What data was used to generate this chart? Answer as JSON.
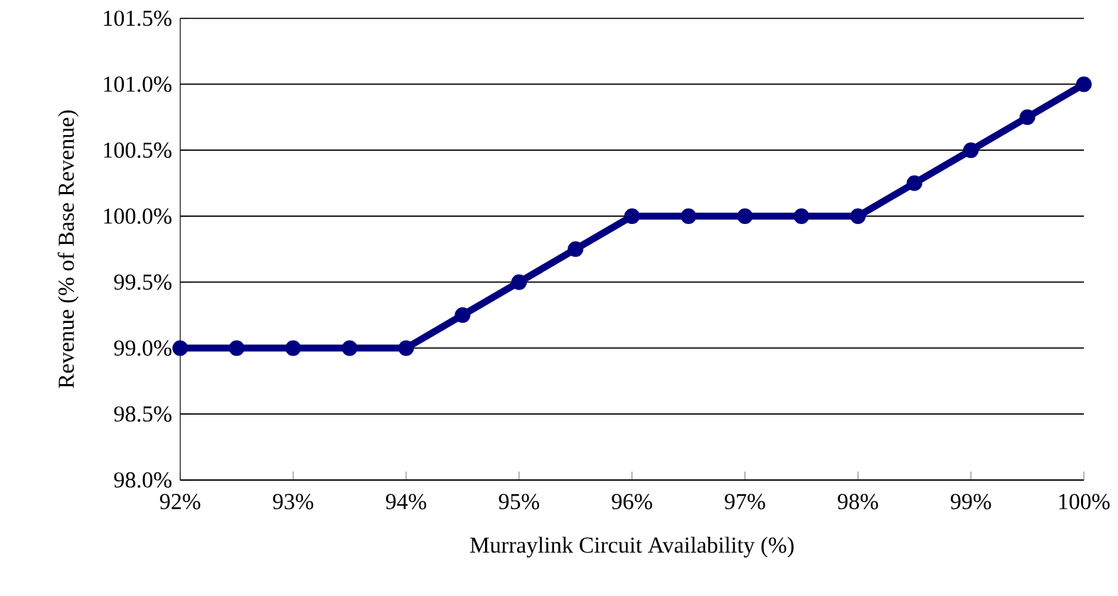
{
  "chart_data": {
    "type": "line",
    "xlabel": "Murraylink Circuit Availability (%)",
    "ylabel": "Revenue (% of Base Revenue)",
    "x": [
      92,
      92.5,
      93,
      93.5,
      94,
      94.5,
      95,
      95.5,
      96,
      96.5,
      97,
      97.5,
      98,
      98.5,
      99,
      99.5,
      100
    ],
    "series": [
      {
        "color": "#000080",
        "values": [
          99.0,
          99.0,
          99.0,
          99.0,
          99.0,
          99.25,
          99.5,
          99.75,
          100.0,
          100.0,
          100.0,
          100.0,
          100.0,
          100.25,
          100.5,
          100.75,
          101.0
        ]
      }
    ],
    "xlim": [
      92,
      100
    ],
    "ylim": [
      98.0,
      101.5
    ],
    "xticks": [
      {
        "value": 92,
        "label": "92%"
      },
      {
        "value": 93,
        "label": "93%"
      },
      {
        "value": 94,
        "label": "94%"
      },
      {
        "value": 95,
        "label": "95%"
      },
      {
        "value": 96,
        "label": "96%"
      },
      {
        "value": 97,
        "label": "97%"
      },
      {
        "value": 98,
        "label": "98%"
      },
      {
        "value": 99,
        "label": "99%"
      },
      {
        "value": 100,
        "label": "100%"
      }
    ],
    "yticks": [
      {
        "value": 98.0,
        "label": "98.0%"
      },
      {
        "value": 98.5,
        "label": "98.5%"
      },
      {
        "value": 99.0,
        "label": "99.0%"
      },
      {
        "value": 99.5,
        "label": "99.5%"
      },
      {
        "value": 100.0,
        "label": "100.0%"
      },
      {
        "value": 100.5,
        "label": "100.5%"
      },
      {
        "value": 101.0,
        "label": "101.0%"
      },
      {
        "value": 101.5,
        "label": "101.5%"
      }
    ],
    "grid": "y",
    "marker": "circle"
  }
}
